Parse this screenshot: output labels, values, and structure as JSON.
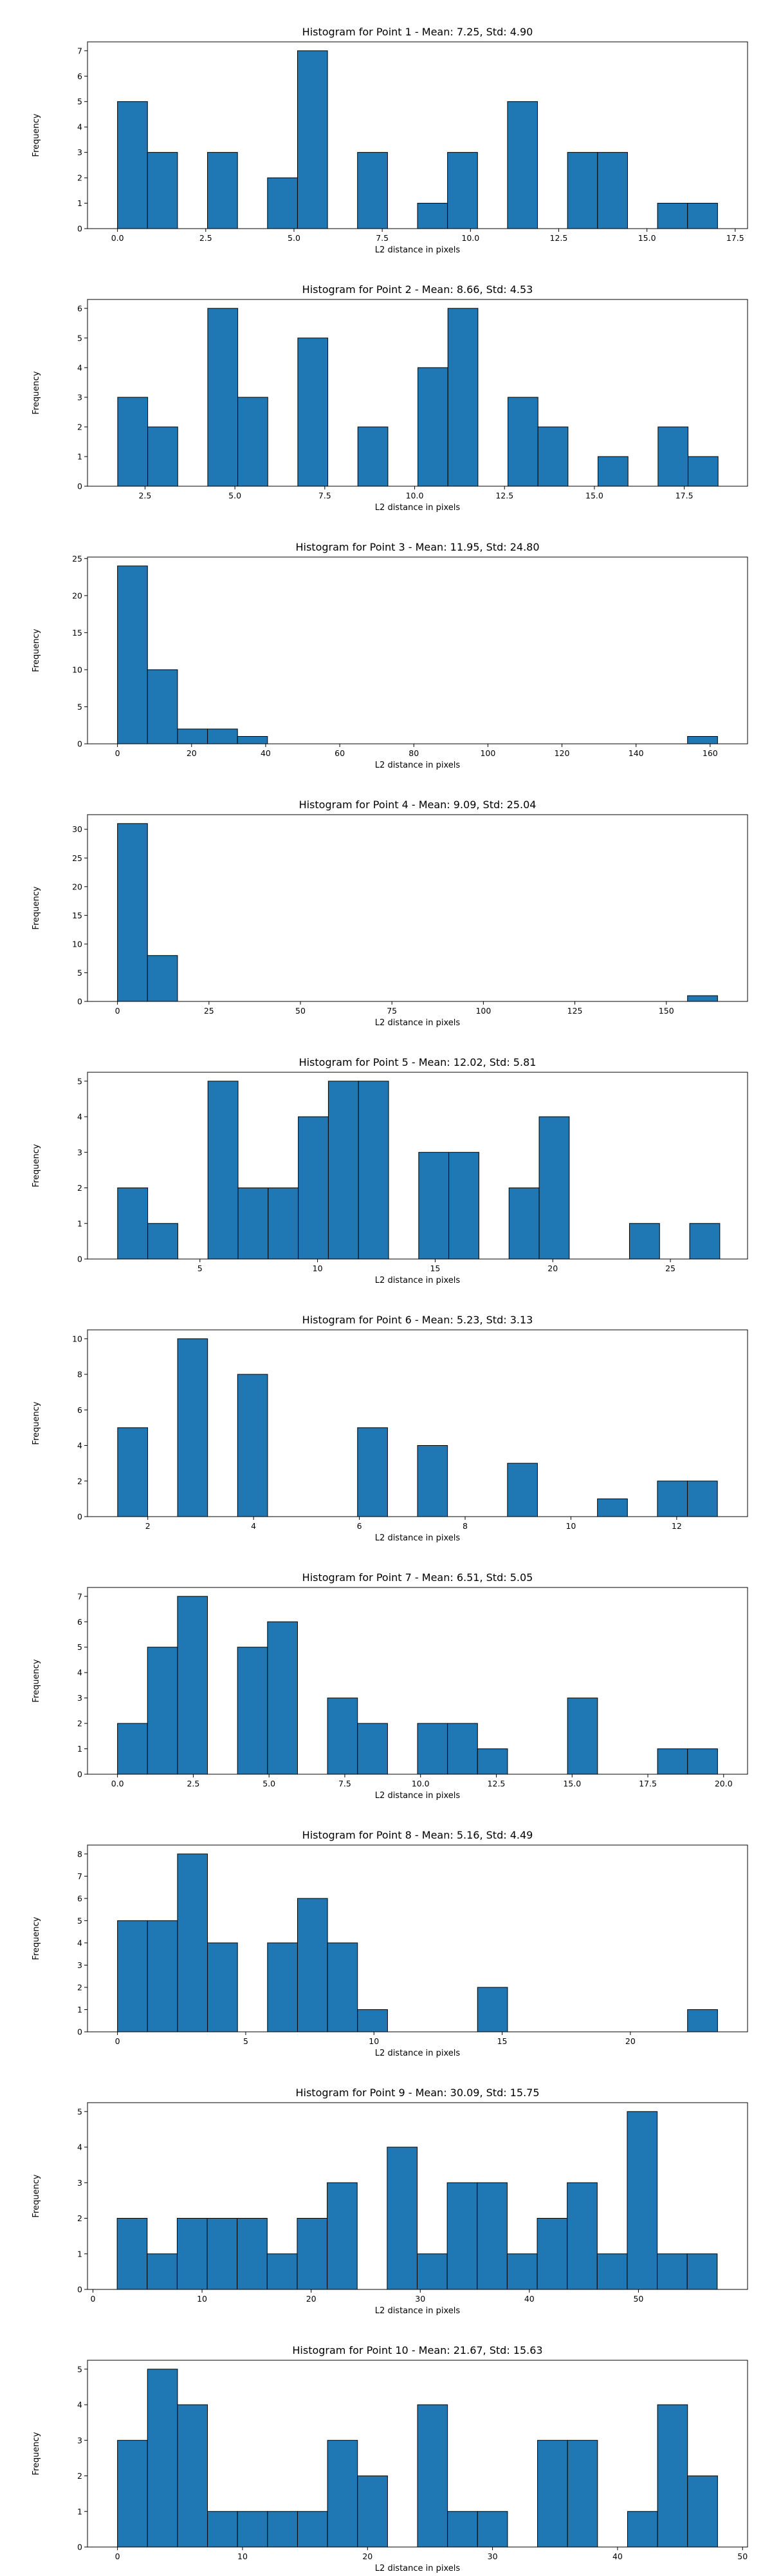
{
  "colors": {
    "bar": "#1f77b4",
    "edge": "#000000",
    "background": "#ffffff"
  },
  "chart_data": [
    {
      "type": "bar",
      "subtype": "histogram",
      "title": "Histogram for Point 1 - Mean: 7.25, Std: 4.90",
      "xlabel": "L2 distance in pixels",
      "ylabel": "Frequency",
      "xlim": [
        -0.85,
        17.85
      ],
      "ylim": [
        0,
        7.35
      ],
      "xticks": [
        0.0,
        2.5,
        5.0,
        7.5,
        10.0,
        12.5,
        15.0,
        17.5
      ],
      "xticklabels": [
        "0.0",
        "2.5",
        "5.0",
        "7.5",
        "10.0",
        "12.5",
        "15.0",
        "17.5"
      ],
      "yticks": [
        0,
        1,
        2,
        3,
        4,
        5,
        6,
        7
      ],
      "bin_start": 0.0,
      "bin_width": 0.85,
      "counts": [
        5,
        3,
        0,
        3,
        0,
        2,
        7,
        0,
        3,
        0,
        1,
        3,
        0,
        5,
        0,
        3,
        3,
        0,
        1,
        1
      ]
    },
    {
      "type": "bar",
      "subtype": "histogram",
      "title": "Histogram for Point 2 - Mean: 8.66, Std: 4.53",
      "xlabel": "L2 distance in pixels",
      "ylabel": "Frequency",
      "xlim": [
        0.9,
        19.26
      ],
      "ylim": [
        0,
        6.3
      ],
      "xticks": [
        2.5,
        5.0,
        7.5,
        10.0,
        12.5,
        15.0,
        17.5
      ],
      "xticklabels": [
        "2.5",
        "5.0",
        "7.5",
        "10.0",
        "12.5",
        "15.0",
        "17.5"
      ],
      "yticks": [
        0,
        1,
        2,
        3,
        4,
        5,
        6
      ],
      "bin_start": 1.74,
      "bin_width": 0.835,
      "counts": [
        3,
        2,
        0,
        6,
        3,
        0,
        5,
        0,
        2,
        0,
        4,
        6,
        0,
        3,
        2,
        0,
        1,
        0,
        2,
        1
      ]
    },
    {
      "type": "bar",
      "subtype": "histogram",
      "title": "Histogram for Point 3 - Mean: 11.95, Std: 24.80",
      "xlabel": "L2 distance in pixels",
      "ylabel": "Frequency",
      "xlim": [
        -8.1,
        170.1
      ],
      "ylim": [
        0,
        25.2
      ],
      "xticks": [
        0,
        20,
        40,
        60,
        80,
        100,
        120,
        140,
        160
      ],
      "xticklabels": [
        "0",
        "20",
        "40",
        "60",
        "80",
        "100",
        "120",
        "140",
        "160"
      ],
      "yticks": [
        0,
        5,
        10,
        15,
        20,
        25
      ],
      "bin_start": 0.0,
      "bin_width": 8.1,
      "counts": [
        24,
        10,
        2,
        2,
        1,
        0,
        0,
        0,
        0,
        0,
        0,
        0,
        0,
        0,
        0,
        0,
        0,
        0,
        0,
        1
      ]
    },
    {
      "type": "bar",
      "subtype": "histogram",
      "title": "Histogram for Point 4 - Mean: 9.09, Std: 25.04",
      "xlabel": "L2 distance in pixels",
      "ylabel": "Frequency",
      "xlim": [
        -8.2,
        172.2
      ],
      "ylim": [
        0,
        32.55
      ],
      "xticks": [
        0,
        25,
        50,
        75,
        100,
        125,
        150
      ],
      "xticklabels": [
        "0",
        "25",
        "50",
        "75",
        "100",
        "125",
        "150"
      ],
      "yticks": [
        0,
        5,
        10,
        15,
        20,
        25,
        30
      ],
      "bin_start": 0.0,
      "bin_width": 8.2,
      "counts": [
        31,
        8,
        0,
        0,
        0,
        0,
        0,
        0,
        0,
        0,
        0,
        0,
        0,
        0,
        0,
        0,
        0,
        0,
        0,
        1
      ]
    },
    {
      "type": "bar",
      "subtype": "histogram",
      "title": "Histogram for Point 5 - Mean: 12.02, Std: 5.81",
      "xlabel": "L2 distance in pixels",
      "ylabel": "Frequency",
      "xlim": [
        0.22,
        28.28
      ],
      "ylim": [
        0,
        5.25
      ],
      "xticks": [
        5,
        10,
        15,
        20,
        25
      ],
      "xticklabels": [
        "5",
        "10",
        "15",
        "20",
        "25"
      ],
      "yticks": [
        0,
        1,
        2,
        3,
        4,
        5
      ],
      "bin_start": 1.5,
      "bin_width": 1.28,
      "counts": [
        2,
        1,
        0,
        5,
        2,
        2,
        4,
        5,
        5,
        0,
        3,
        3,
        0,
        2,
        4,
        0,
        0,
        1,
        0,
        1
      ]
    },
    {
      "type": "bar",
      "subtype": "histogram",
      "title": "Histogram for Point 6 - Mean: 5.23, Std: 3.13",
      "xlabel": "L2 distance in pixels",
      "ylabel": "Frequency",
      "xlim": [
        0.86,
        13.34
      ],
      "ylim": [
        0,
        10.5
      ],
      "xticks": [
        2,
        4,
        6,
        8,
        10,
        12
      ],
      "xticklabels": [
        "2",
        "4",
        "6",
        "8",
        "10",
        "12"
      ],
      "yticks": [
        0,
        2,
        4,
        6,
        8,
        10
      ],
      "bin_start": 1.43,
      "bin_width": 0.567,
      "counts": [
        5,
        0,
        10,
        0,
        8,
        0,
        0,
        0,
        5,
        0,
        4,
        0,
        0,
        3,
        0,
        0,
        1,
        0,
        2,
        2
      ]
    },
    {
      "type": "bar",
      "subtype": "histogram",
      "title": "Histogram for Point 7 - Mean: 6.51, Std: 5.05",
      "xlabel": "L2 distance in pixels",
      "ylabel": "Frequency",
      "xlim": [
        -0.99,
        20.79
      ],
      "ylim": [
        0,
        7.35
      ],
      "xticks": [
        0.0,
        2.5,
        5.0,
        7.5,
        10.0,
        12.5,
        15.0,
        17.5,
        20.0
      ],
      "xticklabels": [
        "0.0",
        "2.5",
        "5.0",
        "7.5",
        "10.0",
        "12.5",
        "15.0",
        "17.5",
        "20.0"
      ],
      "yticks": [
        0,
        1,
        2,
        3,
        4,
        5,
        6,
        7
      ],
      "bin_start": 0.0,
      "bin_width": 0.99,
      "counts": [
        2,
        5,
        7,
        0,
        5,
        6,
        0,
        3,
        2,
        0,
        2,
        2,
        1,
        0,
        0,
        3,
        0,
        0,
        1,
        1
      ]
    },
    {
      "type": "bar",
      "subtype": "histogram",
      "title": "Histogram for Point 8 - Mean: 5.16, Std: 4.49",
      "xlabel": "L2 distance in pixels",
      "ylabel": "Frequency",
      "xlim": [
        -1.17,
        24.57
      ],
      "ylim": [
        0,
        8.4
      ],
      "xticks": [
        0,
        5,
        10,
        15,
        20
      ],
      "xticklabels": [
        "0",
        "5",
        "10",
        "15",
        "20"
      ],
      "yticks": [
        0,
        1,
        2,
        3,
        4,
        5,
        6,
        7,
        8
      ],
      "bin_start": 0.0,
      "bin_width": 1.17,
      "counts": [
        5,
        5,
        8,
        4,
        0,
        4,
        6,
        4,
        1,
        0,
        0,
        0,
        2,
        0,
        0,
        0,
        0,
        0,
        0,
        1
      ]
    },
    {
      "type": "bar",
      "subtype": "histogram",
      "title": "Histogram for Point 9 - Mean: 30.09, Std: 15.75",
      "xlabel": "L2 distance in pixels",
      "ylabel": "Frequency",
      "xlim": [
        -0.5,
        60.0
      ],
      "ylim": [
        0,
        5.25
      ],
      "xticks": [
        0,
        10,
        20,
        30,
        40,
        50
      ],
      "xticklabels": [
        "0",
        "10",
        "20",
        "30",
        "40",
        "50"
      ],
      "yticks": [
        0,
        1,
        2,
        3,
        4,
        5
      ],
      "bin_start": 2.22,
      "bin_width": 2.75,
      "counts": [
        2,
        1,
        2,
        2,
        2,
        1,
        2,
        3,
        0,
        4,
        1,
        3,
        3,
        1,
        2,
        3,
        1,
        5,
        1,
        1
      ]
    },
    {
      "type": "bar",
      "subtype": "histogram",
      "title": "Histogram for Point 10 - Mean: 21.67, Std: 15.63",
      "xlabel": "L2 distance in pixels",
      "ylabel": "Frequency",
      "xlim": [
        -2.4,
        50.4
      ],
      "ylim": [
        0,
        5.25
      ],
      "xticks": [
        0,
        10,
        20,
        30,
        40,
        50
      ],
      "xticklabels": [
        "0",
        "10",
        "20",
        "30",
        "40",
        "50"
      ],
      "yticks": [
        0,
        1,
        2,
        3,
        4,
        5
      ],
      "bin_start": 0.0,
      "bin_width": 2.4,
      "counts": [
        3,
        5,
        4,
        1,
        1,
        1,
        1,
        3,
        2,
        0,
        4,
        1,
        1,
        0,
        3,
        3,
        0,
        1,
        4,
        2
      ]
    }
  ]
}
